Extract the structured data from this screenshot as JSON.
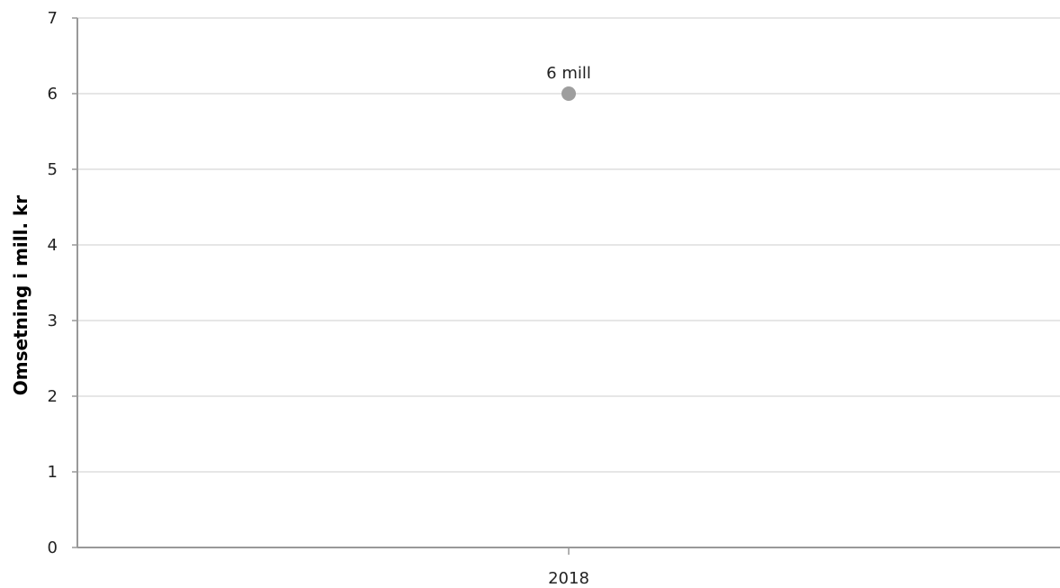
{
  "chart_data": {
    "type": "scatter",
    "title": "",
    "xlabel": "",
    "ylabel": "Omsetning i mill. kr",
    "categories": [
      "2018"
    ],
    "series": [
      {
        "values": [
          6
        ],
        "labels": [
          "6 mill"
        ],
        "color": "#9e9e9e"
      }
    ],
    "ylim": [
      0,
      7
    ],
    "yticks": [
      "0",
      "1",
      "2",
      "3",
      "4",
      "5",
      "6",
      "7"
    ],
    "grid": true
  }
}
